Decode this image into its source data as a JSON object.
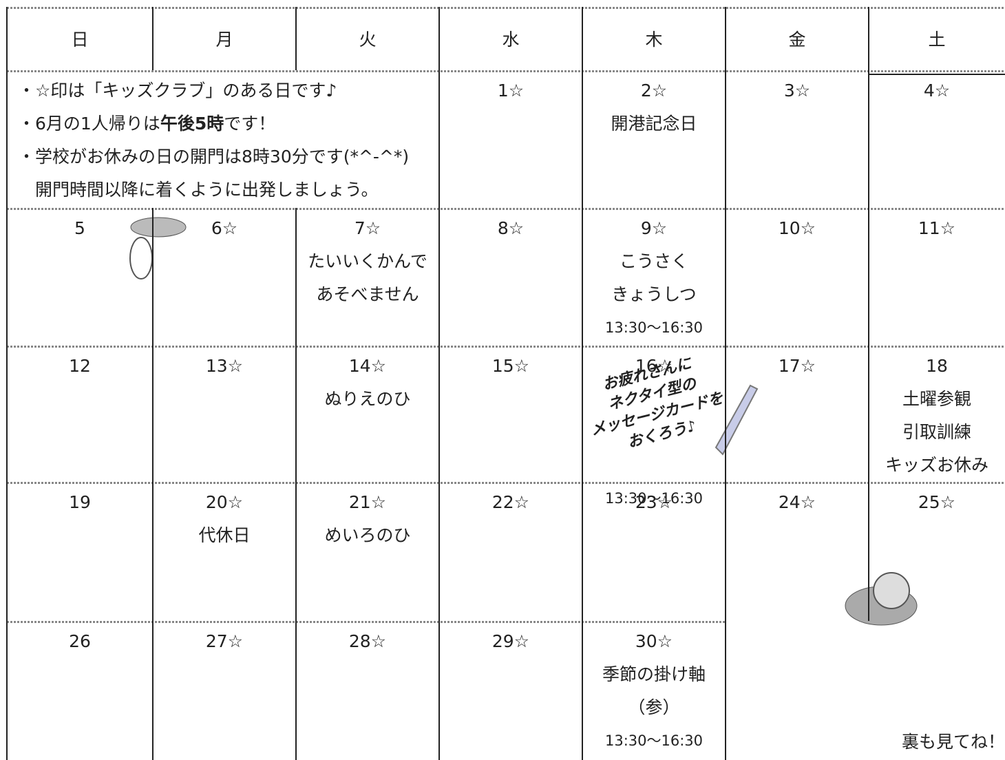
{
  "header": {
    "days": [
      "日",
      "月",
      "火",
      "水",
      "木",
      "金",
      "土"
    ]
  },
  "notes": [
    {
      "parts": [
        {
          "text": "・☆印は「キッズクラブ」のある日です♪",
          "bold": false
        }
      ]
    },
    {
      "parts": [
        {
          "text": "・6月の1人帰りは",
          "bold": false
        },
        {
          "text": "午後5時",
          "bold": true
        },
        {
          "text": "です！",
          "bold": false
        }
      ]
    },
    {
      "parts": [
        {
          "text": "・学校がお休みの日の開門は8時30分です(*^-^*)",
          "bold": false
        }
      ]
    },
    {
      "parts": [
        {
          "text": "　開門時間以降に着くように出発しましょう。",
          "bold": false
        }
      ]
    }
  ],
  "weeks": [
    [
      {
        "lines": [
          "1☆"
        ]
      },
      {
        "lines": [
          "2☆",
          "開港記念日"
        ]
      },
      {
        "lines": [
          "3☆"
        ]
      },
      {
        "lines": [
          "4☆"
        ]
      }
    ],
    [
      {
        "lines": [
          "5"
        ]
      },
      {
        "lines": [
          "6☆"
        ]
      },
      {
        "lines": [
          "7☆",
          "たいいくかんで",
          "あそべません"
        ]
      },
      {
        "lines": [
          "8☆"
        ]
      },
      {
        "lines": [
          "9☆",
          "こうさく",
          "きょうしつ",
          "13:30～16:30"
        ]
      },
      {
        "lines": [
          "10☆"
        ]
      },
      {
        "lines": [
          "11☆"
        ]
      }
    ],
    [
      {
        "lines": [
          "12"
        ]
      },
      {
        "lines": [
          "13☆"
        ]
      },
      {
        "lines": [
          "14☆",
          "ぬりえのひ"
        ]
      },
      {
        "lines": [
          "15☆"
        ]
      },
      {
        "lines": [
          "16☆",
          "",
          "",
          "",
          "13:30～16:30"
        ]
      },
      {
        "lines": [
          "17☆"
        ]
      },
      {
        "lines": [
          "18",
          "土曜参観",
          "引取訓練",
          "キッズお休み"
        ]
      }
    ],
    [
      {
        "lines": [
          "19"
        ]
      },
      {
        "lines": [
          "20☆",
          "代休日"
        ]
      },
      {
        "lines": [
          "21☆",
          "めいろのひ"
        ]
      },
      {
        "lines": [
          "22☆"
        ]
      },
      {
        "lines": [
          "23☆"
        ]
      },
      {
        "lines": [
          "24☆"
        ]
      },
      {
        "lines": [
          "25☆"
        ]
      }
    ],
    [
      {
        "lines": [
          "26"
        ]
      },
      {
        "lines": [
          "27☆"
        ]
      },
      {
        "lines": [
          "28☆"
        ]
      },
      {
        "lines": [
          "29☆"
        ]
      },
      {
        "lines": [
          "30☆",
          "季節の掛け軸",
          "（参）",
          "13:30～16:30"
        ]
      }
    ]
  ],
  "annotation": [
    "お疲れさんに",
    "ネクタイ型の",
    "メッセージカードを",
    "おくろう♪"
  ],
  "footer": "裏も見てね！"
}
